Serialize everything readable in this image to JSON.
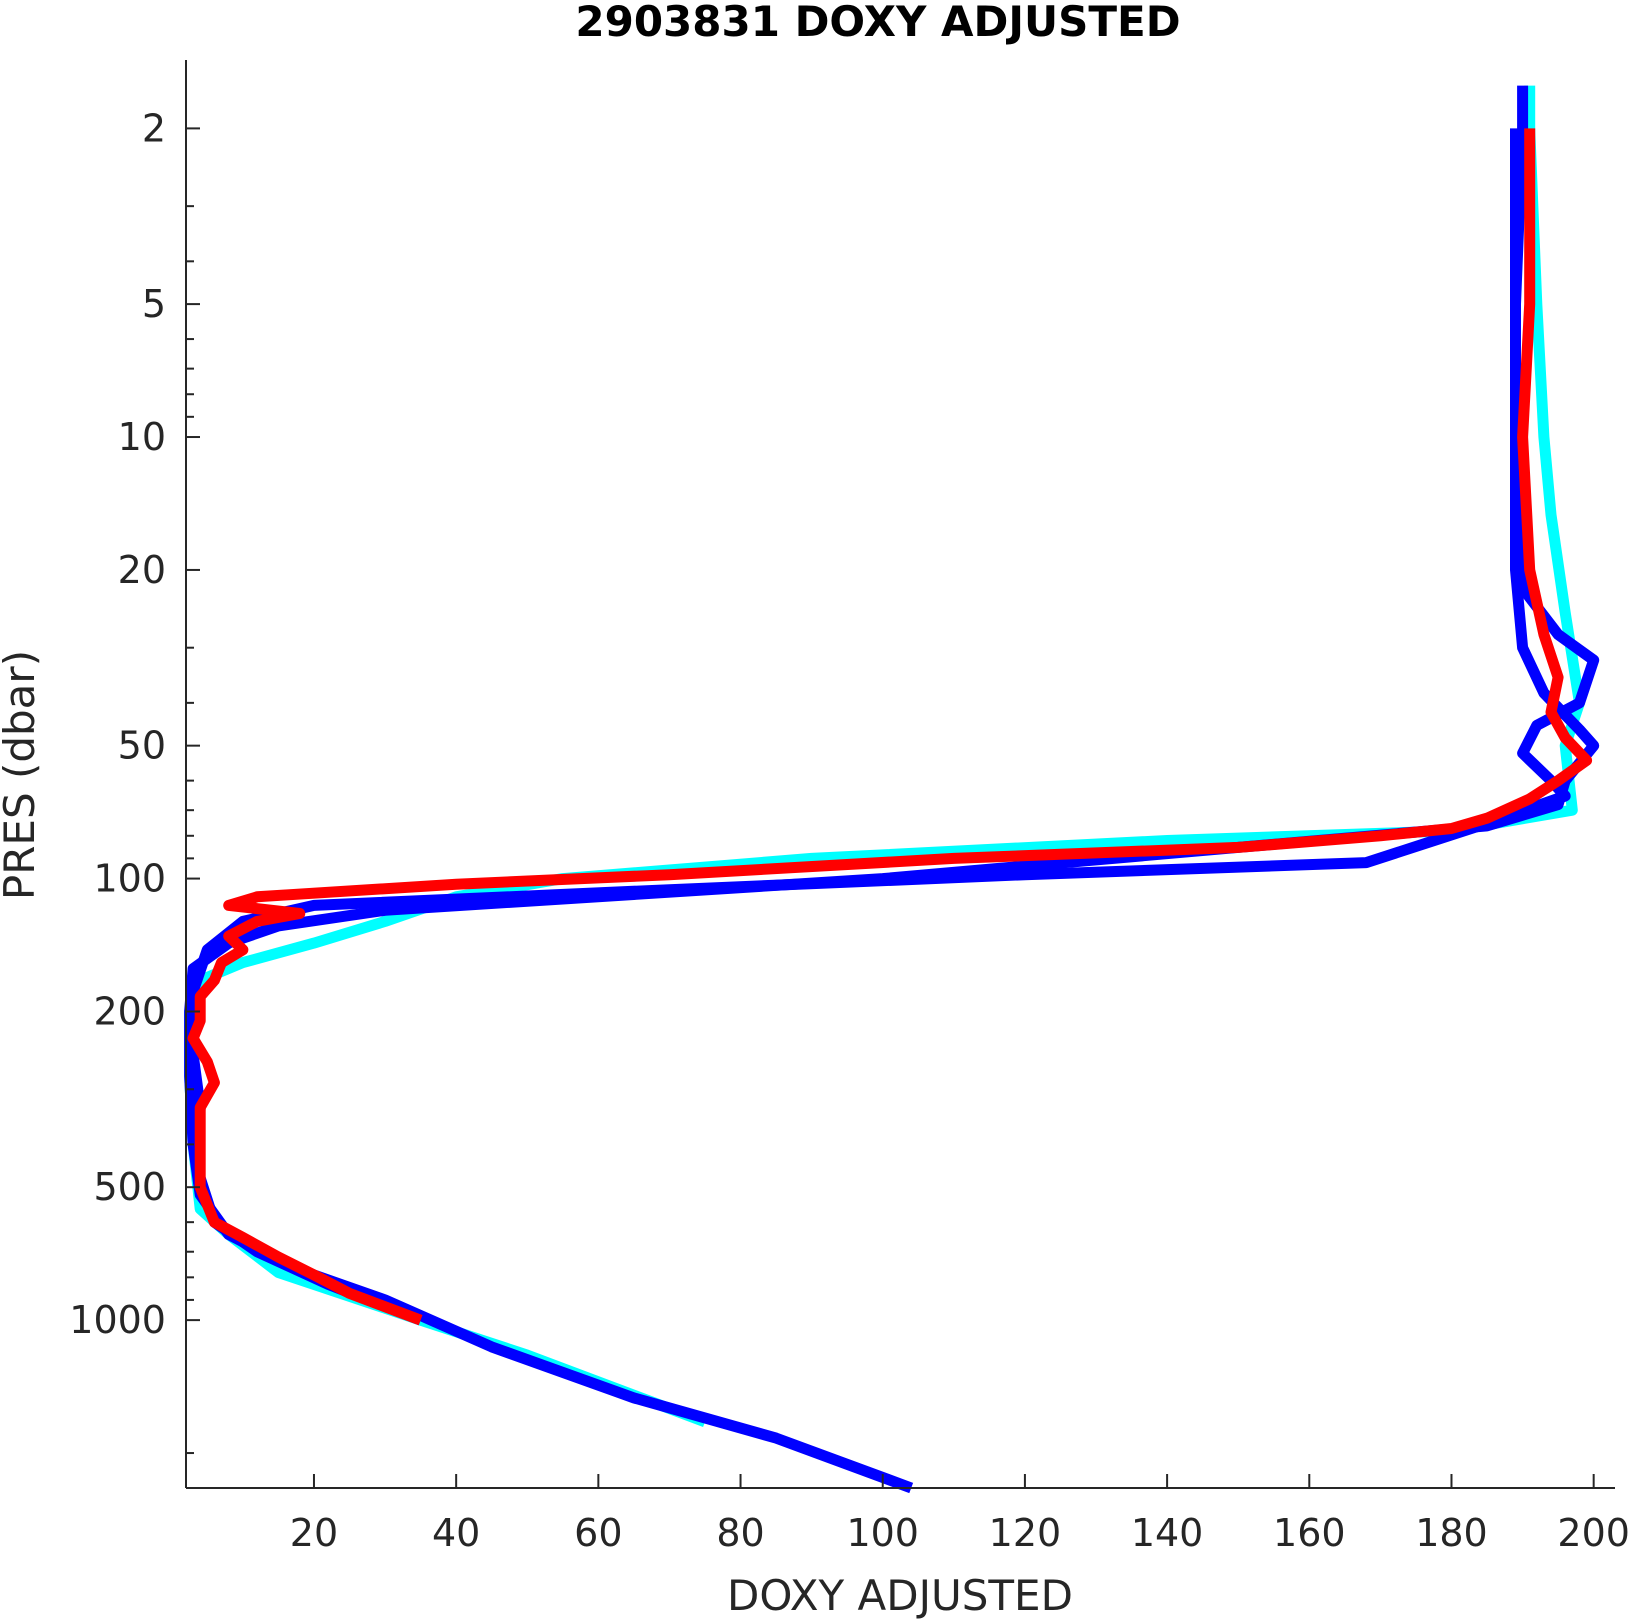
{
  "chart_data": {
    "type": "line",
    "title": "2903831  DOXY ADJUSTED",
    "xlabel": "DOXY ADJUSTED",
    "ylabel": "PRES (dbar)",
    "xlim": [
      2,
      203
    ],
    "ylim": [
      1.4,
      2400
    ],
    "y_scale": "log",
    "y_reversed": true,
    "grid": false,
    "x_ticks": [
      20,
      40,
      60,
      80,
      100,
      120,
      140,
      160,
      180,
      200
    ],
    "x_tick_labels": [
      "20",
      "40",
      "60",
      "80",
      "100",
      "120",
      "140",
      "160",
      "180",
      "200"
    ],
    "y_ticks": [
      2,
      5,
      10,
      20,
      50,
      100,
      200,
      500,
      1000
    ],
    "y_tick_labels": [
      "2",
      "5",
      "10",
      "20",
      "50",
      "100",
      "200",
      "500",
      "1000"
    ],
    "colors": {
      "cyan": "#00ffff",
      "blue": "#0000ff",
      "red": "#ff0000",
      "axis": "#262626"
    },
    "series": [
      {
        "color": "#00ffff",
        "points": [
          [
            191,
            1.6
          ],
          [
            191,
            2
          ],
          [
            192,
            5
          ],
          [
            193,
            10
          ],
          [
            194,
            15
          ],
          [
            196,
            25
          ],
          [
            198,
            40
          ],
          [
            196,
            50
          ],
          [
            197,
            70
          ],
          [
            180,
            78
          ],
          [
            140,
            82
          ],
          [
            90,
            90
          ],
          [
            55,
            100
          ],
          [
            40,
            110
          ],
          [
            30,
            125
          ],
          [
            20,
            140
          ],
          [
            10,
            155
          ],
          [
            4,
            170
          ],
          [
            2.5,
            200
          ],
          [
            2.5,
            280
          ],
          [
            3,
            400
          ],
          [
            4,
            560
          ],
          [
            8,
            640
          ],
          [
            15,
            780
          ],
          [
            35,
            1000
          ],
          [
            50,
            1200
          ],
          [
            75,
            1700
          ]
        ]
      },
      {
        "color": "#0000ff",
        "points": [
          [
            190,
            1.6
          ],
          [
            190,
            2
          ],
          [
            189,
            5
          ],
          [
            189,
            10
          ],
          [
            189,
            20
          ],
          [
            190,
            30
          ],
          [
            193,
            38
          ],
          [
            198,
            46
          ],
          [
            200,
            50
          ],
          [
            196,
            60
          ],
          [
            195,
            68
          ],
          [
            185,
            76
          ],
          [
            150,
            85
          ],
          [
            100,
            100
          ],
          [
            30,
            118
          ],
          [
            15,
            128
          ],
          [
            8,
            140
          ],
          [
            3,
            160
          ],
          [
            2.5,
            200
          ],
          [
            2.5,
            280
          ],
          [
            3,
            400
          ],
          [
            4,
            520
          ],
          [
            8,
            640
          ],
          [
            17,
            760
          ],
          [
            30,
            900
          ],
          [
            45,
            1150
          ],
          [
            65,
            1500
          ],
          [
            85,
            1850
          ],
          [
            104,
            2400
          ]
        ]
      },
      {
        "color": "#0000ff",
        "points": [
          [
            189,
            2
          ],
          [
            189,
            10
          ],
          [
            190,
            22
          ],
          [
            195,
            28
          ],
          [
            200,
            32
          ],
          [
            198,
            40
          ],
          [
            192,
            45
          ],
          [
            190,
            52
          ],
          [
            194,
            60
          ],
          [
            196,
            65
          ],
          [
            185,
            75
          ],
          [
            168,
            92
          ],
          [
            120,
            98
          ],
          [
            70,
            106
          ],
          [
            20,
            115
          ],
          [
            10,
            125
          ],
          [
            5,
            145
          ],
          [
            3,
            180
          ],
          [
            3,
            250
          ],
          [
            4,
            330
          ],
          [
            3.5,
            450
          ],
          [
            6,
            600
          ],
          [
            12,
            700
          ],
          [
            22,
            830
          ],
          [
            35,
            1000
          ]
        ]
      },
      {
        "color": "#ff0000",
        "points": [
          [
            191,
            2
          ],
          [
            191,
            5
          ],
          [
            190,
            10
          ],
          [
            191,
            20
          ],
          [
            193,
            28
          ],
          [
            195,
            35
          ],
          [
            194,
            42
          ],
          [
            196,
            48
          ],
          [
            199,
            54
          ],
          [
            195,
            60
          ],
          [
            191,
            66
          ],
          [
            185,
            73
          ],
          [
            180,
            77
          ],
          [
            170,
            80
          ],
          [
            150,
            85
          ],
          [
            110,
            90
          ],
          [
            70,
            98
          ],
          [
            40,
            103
          ],
          [
            12,
            110
          ],
          [
            8,
            115
          ],
          [
            18,
            120
          ],
          [
            12,
            125
          ],
          [
            8,
            135
          ],
          [
            10,
            145
          ],
          [
            7,
            155
          ],
          [
            6,
            170
          ],
          [
            4,
            185
          ],
          [
            4,
            210
          ],
          [
            3,
            230
          ],
          [
            5,
            260
          ],
          [
            6,
            290
          ],
          [
            4,
            330
          ],
          [
            4,
            420
          ],
          [
            4,
            500
          ],
          [
            6,
            600
          ],
          [
            10,
            650
          ],
          [
            15,
            720
          ],
          [
            20,
            790
          ],
          [
            25,
            870
          ],
          [
            35,
            1000
          ]
        ]
      }
    ]
  }
}
